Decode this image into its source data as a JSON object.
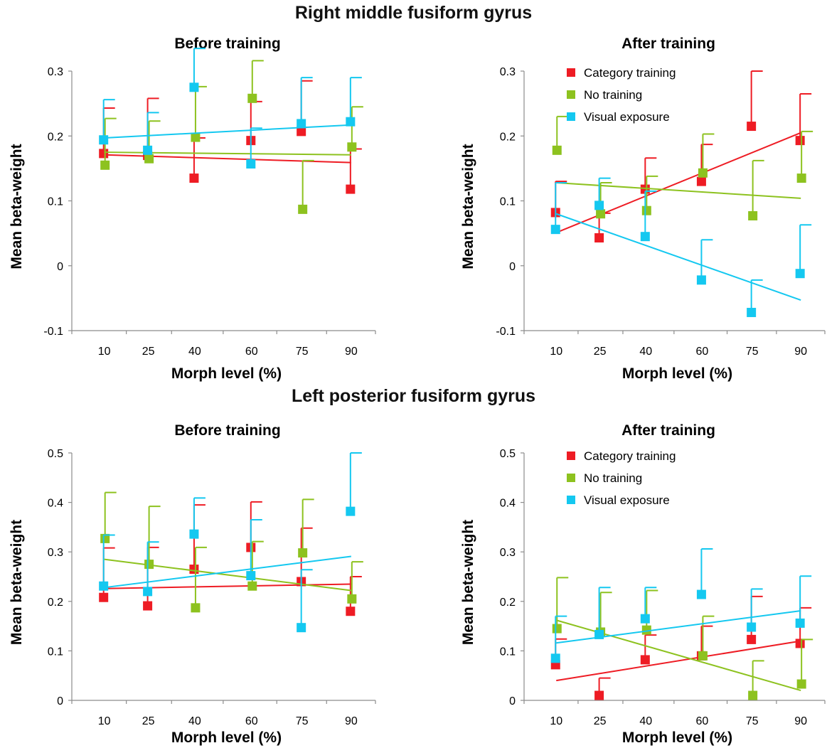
{
  "sections": [
    {
      "title": "Right middle fusiform gyrus",
      "panels": [
        {
          "title": "Before training",
          "xlabel": "Morph level (%)",
          "ylabel": "Mean beta-weight",
          "ylim": [
            -0.1,
            0.3
          ],
          "yticks": [
            "-0.1",
            "0",
            "0.1",
            "0.2",
            "0.3"
          ],
          "xticks": [
            "10",
            "25",
            "40",
            "60",
            "75",
            "90"
          ],
          "legend": false,
          "series": [
            {
              "name": "Category training",
              "color": "#ee1c24",
              "x": [
                10,
                25,
                40,
                60,
                75,
                90
              ],
              "y": [
                0.173,
                0.17,
                0.135,
                0.193,
                0.207,
                0.118
              ],
              "err": [
                0.07,
                0.088,
                0.062,
                0.06,
                0.078,
                0.062
              ],
              "fit": [
                0.171,
                0.159
              ]
            },
            {
              "name": "No training",
              "color": "#8dc21f",
              "x": [
                10,
                25,
                40,
                60,
                75,
                90
              ],
              "y": [
                0.155,
                0.165,
                0.198,
                0.258,
                0.087,
                0.183
              ],
              "err": [
                0.072,
                0.058,
                0.078,
                0.058,
                0.075,
                0.062
              ],
              "fit": [
                0.175,
                0.171
              ]
            },
            {
              "name": "Visual exposure",
              "color": "#14c8f0",
              "x": [
                10,
                25,
                40,
                60,
                75,
                90
              ],
              "y": [
                0.194,
                0.178,
                0.275,
                0.157,
                0.219,
                0.222
              ],
              "err": [
                0.062,
                0.058,
                0.06,
                0.055,
                0.071,
                0.068
              ],
              "fit": [
                0.197,
                0.217
              ]
            }
          ]
        },
        {
          "title": "After training",
          "xlabel": "Morph level (%)",
          "ylabel": "Mean beta-weight",
          "ylim": [
            -0.1,
            0.3
          ],
          "yticks": [
            "-0.1",
            "0",
            "0.1",
            "0.2",
            "0.3"
          ],
          "xticks": [
            "10",
            "25",
            "40",
            "60",
            "75",
            "90"
          ],
          "legend": true,
          "series": [
            {
              "name": "Category training",
              "color": "#ee1c24",
              "x": [
                10,
                25,
                40,
                60,
                75,
                90
              ],
              "y": [
                0.082,
                0.043,
                0.118,
                0.13,
                0.215,
                0.193
              ],
              "err": [
                0.048,
                0.038,
                0.048,
                0.057,
                0.085,
                0.072
              ],
              "fit": [
                0.051,
                0.205
              ]
            },
            {
              "name": "No training",
              "color": "#8dc21f",
              "x": [
                10,
                25,
                40,
                60,
                75,
                90
              ],
              "y": [
                0.178,
                0.08,
                0.085,
                0.143,
                0.077,
                0.135
              ],
              "err": [
                0.052,
                0.048,
                0.053,
                0.06,
                0.085,
                0.072
              ],
              "fit": [
                0.128,
                0.104
              ]
            },
            {
              "name": "Visual exposure",
              "color": "#14c8f0",
              "x": [
                10,
                25,
                40,
                60,
                75,
                90
              ],
              "y": [
                0.056,
                0.093,
                0.045,
                -0.022,
                -0.072,
                -0.012
              ],
              "err": [
                0.072,
                0.042,
                0.07,
                0.062,
                0.05,
                0.075
              ],
              "fit": [
                0.08,
                -0.053
              ]
            }
          ]
        }
      ]
    },
    {
      "title": "Left posterior fusiform gyrus",
      "panels": [
        {
          "title": "Before training",
          "xlabel": "Morph level (%)",
          "ylabel": "Mean beta-weight",
          "ylim": [
            0,
            0.5
          ],
          "yticks": [
            "0",
            "0.1",
            "0.2",
            "0.3",
            "0.4",
            "0.5"
          ],
          "xticks": [
            "10",
            "25",
            "40",
            "60",
            "75",
            "90"
          ],
          "legend": false,
          "series": [
            {
              "name": "Category training",
              "color": "#ee1c24",
              "x": [
                10,
                25,
                40,
                60,
                75,
                90
              ],
              "y": [
                0.208,
                0.191,
                0.265,
                0.309,
                0.24,
                0.18
              ],
              "err": [
                0.1,
                0.118,
                0.13,
                0.092,
                0.108,
                0.07
              ],
              "fit": [
                0.226,
                0.235
              ]
            },
            {
              "name": "No training",
              "color": "#8dc21f",
              "x": [
                10,
                25,
                40,
                60,
                75,
                90
              ],
              "y": [
                0.327,
                0.275,
                0.187,
                0.231,
                0.298,
                0.205
              ],
              "err": [
                0.093,
                0.117,
                0.122,
                0.09,
                0.108,
                0.075
              ],
              "fit": [
                0.285,
                0.222
              ]
            },
            {
              "name": "Visual exposure",
              "color": "#14c8f0",
              "x": [
                10,
                25,
                40,
                60,
                75,
                90
              ],
              "y": [
                0.231,
                0.22,
                0.336,
                0.252,
                0.147,
                0.382
              ],
              "err": [
                0.103,
                0.1,
                0.073,
                0.113,
                0.117,
                0.118
              ],
              "fit": [
                0.228,
                0.291
              ]
            }
          ]
        },
        {
          "title": "After training",
          "xlabel": "Morph level (%)",
          "ylabel": "Mean beta-weight",
          "ylim": [
            0,
            0.5
          ],
          "yticks": [
            "0",
            "0.1",
            "0.2",
            "0.3",
            "0.4",
            "0.5"
          ],
          "xticks": [
            "10",
            "25",
            "40",
            "60",
            "75",
            "90"
          ],
          "legend": true,
          "series": [
            {
              "name": "Category training",
              "color": "#ee1c24",
              "x": [
                10,
                25,
                40,
                60,
                75,
                90
              ],
              "y": [
                0.072,
                0.01,
                0.082,
                0.09,
                0.123,
                0.115
              ],
              "err": [
                0.052,
                0.035,
                0.05,
                0.06,
                0.087,
                0.072
              ],
              "fit": [
                0.04,
                0.12
              ]
            },
            {
              "name": "No training",
              "color": "#8dc21f",
              "x": [
                10,
                25,
                40,
                60,
                75,
                90
              ],
              "y": [
                0.145,
                0.138,
                0.142,
                0.09,
                0.01,
                0.033
              ],
              "err": [
                0.103,
                0.08,
                0.08,
                0.08,
                0.07,
                0.09
              ],
              "fit": [
                0.162,
                0.02
              ]
            },
            {
              "name": "Visual exposure",
              "color": "#14c8f0",
              "x": [
                10,
                25,
                40,
                60,
                75,
                90
              ],
              "y": [
                0.085,
                0.133,
                0.165,
                0.214,
                0.148,
                0.156
              ],
              "err": [
                0.085,
                0.095,
                0.063,
                0.092,
                0.077,
                0.095
              ],
              "fit": [
                0.116,
                0.181
              ]
            }
          ]
        }
      ]
    }
  ],
  "chart_data": [
    {
      "type": "scatter",
      "section": "Right middle fusiform gyrus",
      "title": "Before training",
      "xlabel": "Morph level (%)",
      "ylabel": "Mean beta-weight",
      "x": [
        10,
        25,
        40,
        60,
        75,
        90
      ],
      "ylim": [
        -0.1,
        0.3
      ],
      "series": [
        {
          "name": "Category training",
          "values": [
            0.173,
            0.17,
            0.135,
            0.193,
            0.207,
            0.118
          ]
        },
        {
          "name": "No training",
          "values": [
            0.155,
            0.165,
            0.198,
            0.258,
            0.087,
            0.183
          ]
        },
        {
          "name": "Visual exposure",
          "values": [
            0.194,
            0.178,
            0.275,
            0.157,
            0.219,
            0.222
          ]
        }
      ]
    },
    {
      "type": "scatter",
      "section": "Right middle fusiform gyrus",
      "title": "After training",
      "xlabel": "Morph level (%)",
      "ylabel": "Mean beta-weight",
      "x": [
        10,
        25,
        40,
        60,
        75,
        90
      ],
      "ylim": [
        -0.1,
        0.3
      ],
      "legend": "top-center",
      "series": [
        {
          "name": "Category training",
          "values": [
            0.082,
            0.043,
            0.118,
            0.13,
            0.215,
            0.193
          ]
        },
        {
          "name": "No training",
          "values": [
            0.178,
            0.08,
            0.085,
            0.143,
            0.077,
            0.135
          ]
        },
        {
          "name": "Visual exposure",
          "values": [
            0.056,
            0.093,
            0.045,
            -0.022,
            -0.072,
            -0.012
          ]
        }
      ]
    },
    {
      "type": "scatter",
      "section": "Left posterior fusiform gyrus",
      "title": "Before training",
      "xlabel": "Morph level (%)",
      "ylabel": "Mean beta-weight",
      "x": [
        10,
        25,
        40,
        60,
        75,
        90
      ],
      "ylim": [
        0,
        0.5
      ],
      "series": [
        {
          "name": "Category training",
          "values": [
            0.208,
            0.191,
            0.265,
            0.309,
            0.24,
            0.18
          ]
        },
        {
          "name": "No training",
          "values": [
            0.327,
            0.275,
            0.187,
            0.231,
            0.298,
            0.205
          ]
        },
        {
          "name": "Visual exposure",
          "values": [
            0.231,
            0.22,
            0.336,
            0.252,
            0.147,
            0.382
          ]
        }
      ]
    },
    {
      "type": "scatter",
      "section": "Left posterior fusiform gyrus",
      "title": "After training",
      "xlabel": "Morph level (%)",
      "ylabel": "Mean beta-weight",
      "x": [
        10,
        25,
        40,
        60,
        75,
        90
      ],
      "ylim": [
        0,
        0.5
      ],
      "legend": "top-center",
      "series": [
        {
          "name": "Category training",
          "values": [
            0.072,
            0.01,
            0.082,
            0.09,
            0.123,
            0.115
          ]
        },
        {
          "name": "No training",
          "values": [
            0.145,
            0.138,
            0.142,
            0.09,
            0.01,
            0.033
          ]
        },
        {
          "name": "Visual exposure",
          "values": [
            0.085,
            0.133,
            0.165,
            0.214,
            0.148,
            0.156
          ]
        }
      ]
    }
  ]
}
